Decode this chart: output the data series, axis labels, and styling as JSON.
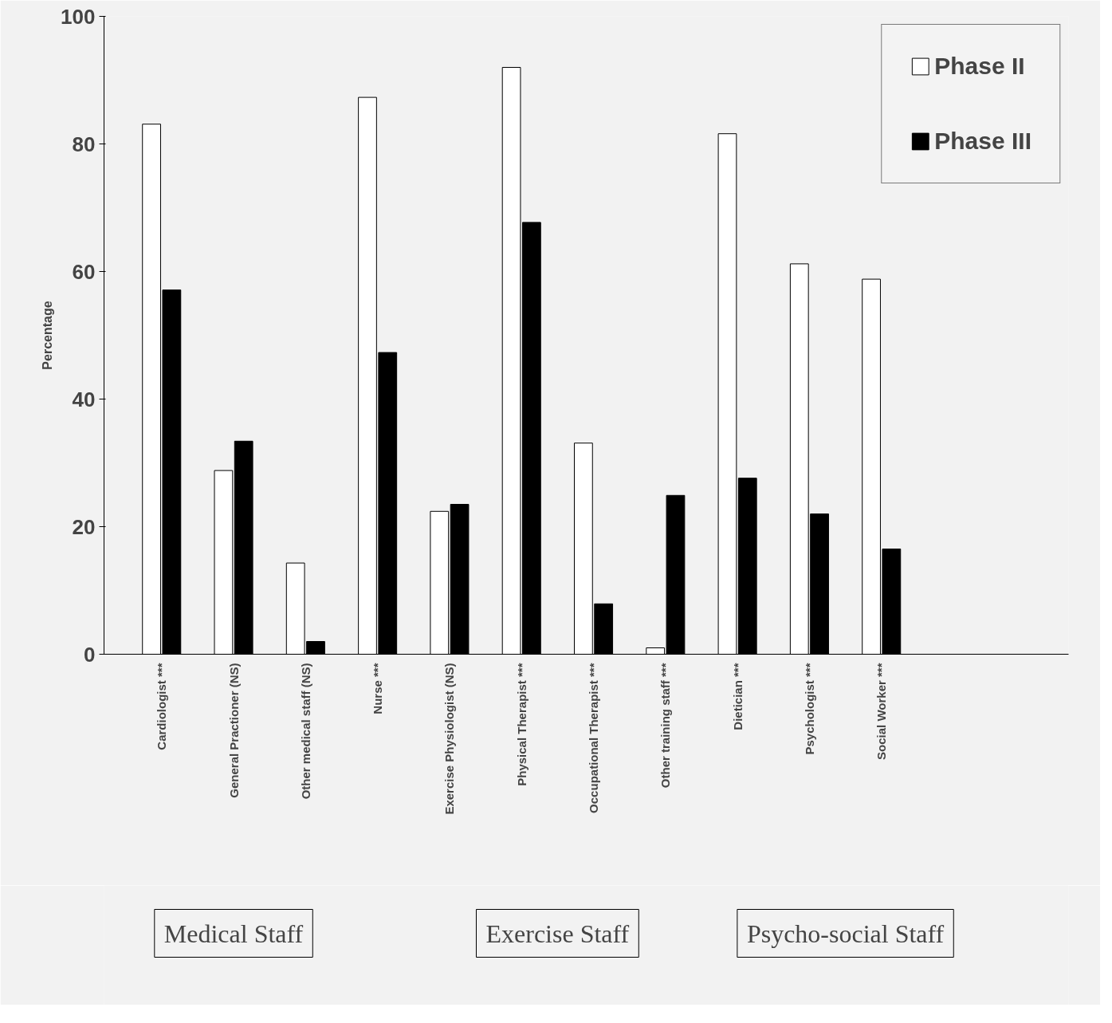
{
  "chart_data": {
    "type": "bar",
    "ylabel": "Percentage",
    "categories": [
      "Cardiologist ***",
      "General Practioner (NS)",
      "Other medical staff (NS)",
      "Nurse ***",
      "Exercise Physiologist (NS)",
      "Physical Therapist ***",
      "Occupational Therapist ***",
      "Other training staff ***",
      "Dietician ***",
      "Psychologist ***",
      "Social Worker ***"
    ],
    "series": [
      {
        "name": "Phase II",
        "color": "#ffffff",
        "values": [
          83.1,
          28.8,
          14.3,
          87.3,
          22.4,
          92.0,
          33.1,
          1.0,
          81.6,
          61.2,
          58.8
        ]
      },
      {
        "name": "Phase III",
        "color": "#000000",
        "values": [
          57.1,
          33.4,
          2.0,
          47.3,
          23.5,
          67.7,
          7.9,
          24.9,
          27.6,
          22.0,
          16.5
        ]
      }
    ],
    "ylim": [
      0,
      100
    ],
    "yticks": [
      0,
      20,
      40,
      60,
      80,
      100
    ],
    "grid": false,
    "legend": "top right",
    "annotations": [
      "Medical Staff",
      "Exercise Staff",
      "Psycho-social Staff"
    ]
  }
}
